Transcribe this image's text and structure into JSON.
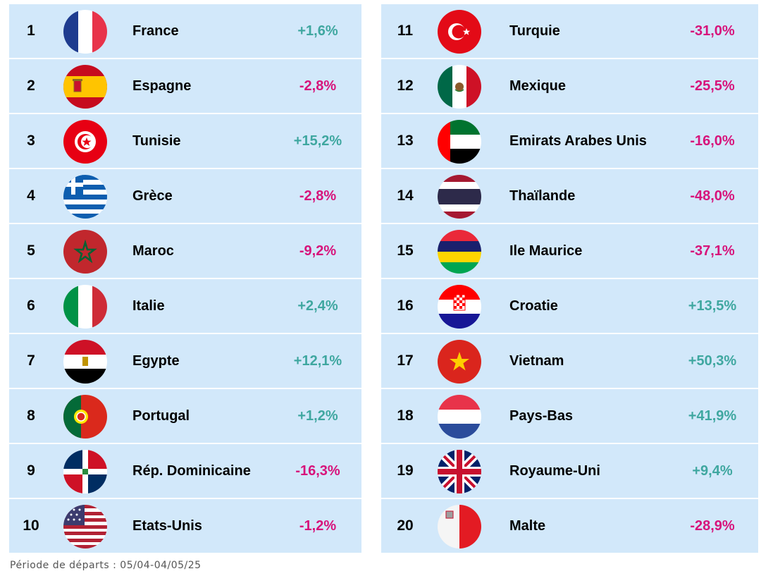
{
  "rankings": [
    {
      "rank": "1",
      "country": "France",
      "change": "+1,6%",
      "trend": "pos",
      "flag": "flag-france"
    },
    {
      "rank": "2",
      "country": "Espagne",
      "change": "-2,8%",
      "trend": "neg",
      "flag": "flag-spain"
    },
    {
      "rank": "3",
      "country": "Tunisie",
      "change": "+15,2%",
      "trend": "pos",
      "flag": "flag-tunisia"
    },
    {
      "rank": "4",
      "country": "Grèce",
      "change": "-2,8%",
      "trend": "neg",
      "flag": "flag-greece"
    },
    {
      "rank": "5",
      "country": "Maroc",
      "change": "-9,2%",
      "trend": "neg",
      "flag": "flag-morocco"
    },
    {
      "rank": "6",
      "country": "Italie",
      "change": "+2,4%",
      "trend": "pos",
      "flag": "flag-italy"
    },
    {
      "rank": "7",
      "country": "Egypte",
      "change": "+12,1%",
      "trend": "pos",
      "flag": "flag-egypt"
    },
    {
      "rank": "8",
      "country": "Portugal",
      "change": "+1,2%",
      "trend": "pos",
      "flag": "flag-portugal"
    },
    {
      "rank": "9",
      "country": "Rép. Dominicaine",
      "change": "-16,3%",
      "trend": "neg",
      "flag": "flag-dominican-republic"
    },
    {
      "rank": "10",
      "country": "Etats-Unis",
      "change": "-1,2%",
      "trend": "neg",
      "flag": "flag-usa"
    },
    {
      "rank": "11",
      "country": "Turquie",
      "change": "-31,0%",
      "trend": "neg",
      "flag": "flag-turkey"
    },
    {
      "rank": "12",
      "country": "Mexique",
      "change": "-25,5%",
      "trend": "neg",
      "flag": "flag-mexico"
    },
    {
      "rank": "13",
      "country": "Emirats Arabes Unis",
      "change": "-16,0%",
      "trend": "neg",
      "flag": "flag-uae"
    },
    {
      "rank": "14",
      "country": "Thaïlande",
      "change": "-48,0%",
      "trend": "neg",
      "flag": "flag-thailand"
    },
    {
      "rank": "15",
      "country": "Ile Maurice",
      "change": "-37,1%",
      "trend": "neg",
      "flag": "flag-mauritius"
    },
    {
      "rank": "16",
      "country": "Croatie",
      "change": "+13,5%",
      "trend": "pos",
      "flag": "flag-croatia"
    },
    {
      "rank": "17",
      "country": "Vietnam",
      "change": "+50,3%",
      "trend": "pos",
      "flag": "flag-vietnam"
    },
    {
      "rank": "18",
      "country": "Pays-Bas",
      "change": "+41,9%",
      "trend": "pos",
      "flag": "flag-netherlands"
    },
    {
      "rank": "19",
      "country": "Royaume-Uni",
      "change": "+9,4%",
      "trend": "pos",
      "flag": "flag-uk"
    },
    {
      "rank": "20",
      "country": "Malte",
      "change": "-28,9%",
      "trend": "neg",
      "flag": "flag-malta"
    }
  ],
  "colors": {
    "row_background": "#d2e8fa",
    "positive": "#3fa7a0",
    "negative": "#d7137b"
  },
  "footer": {
    "text": "Période de départs : 05/04-04/05/25"
  }
}
